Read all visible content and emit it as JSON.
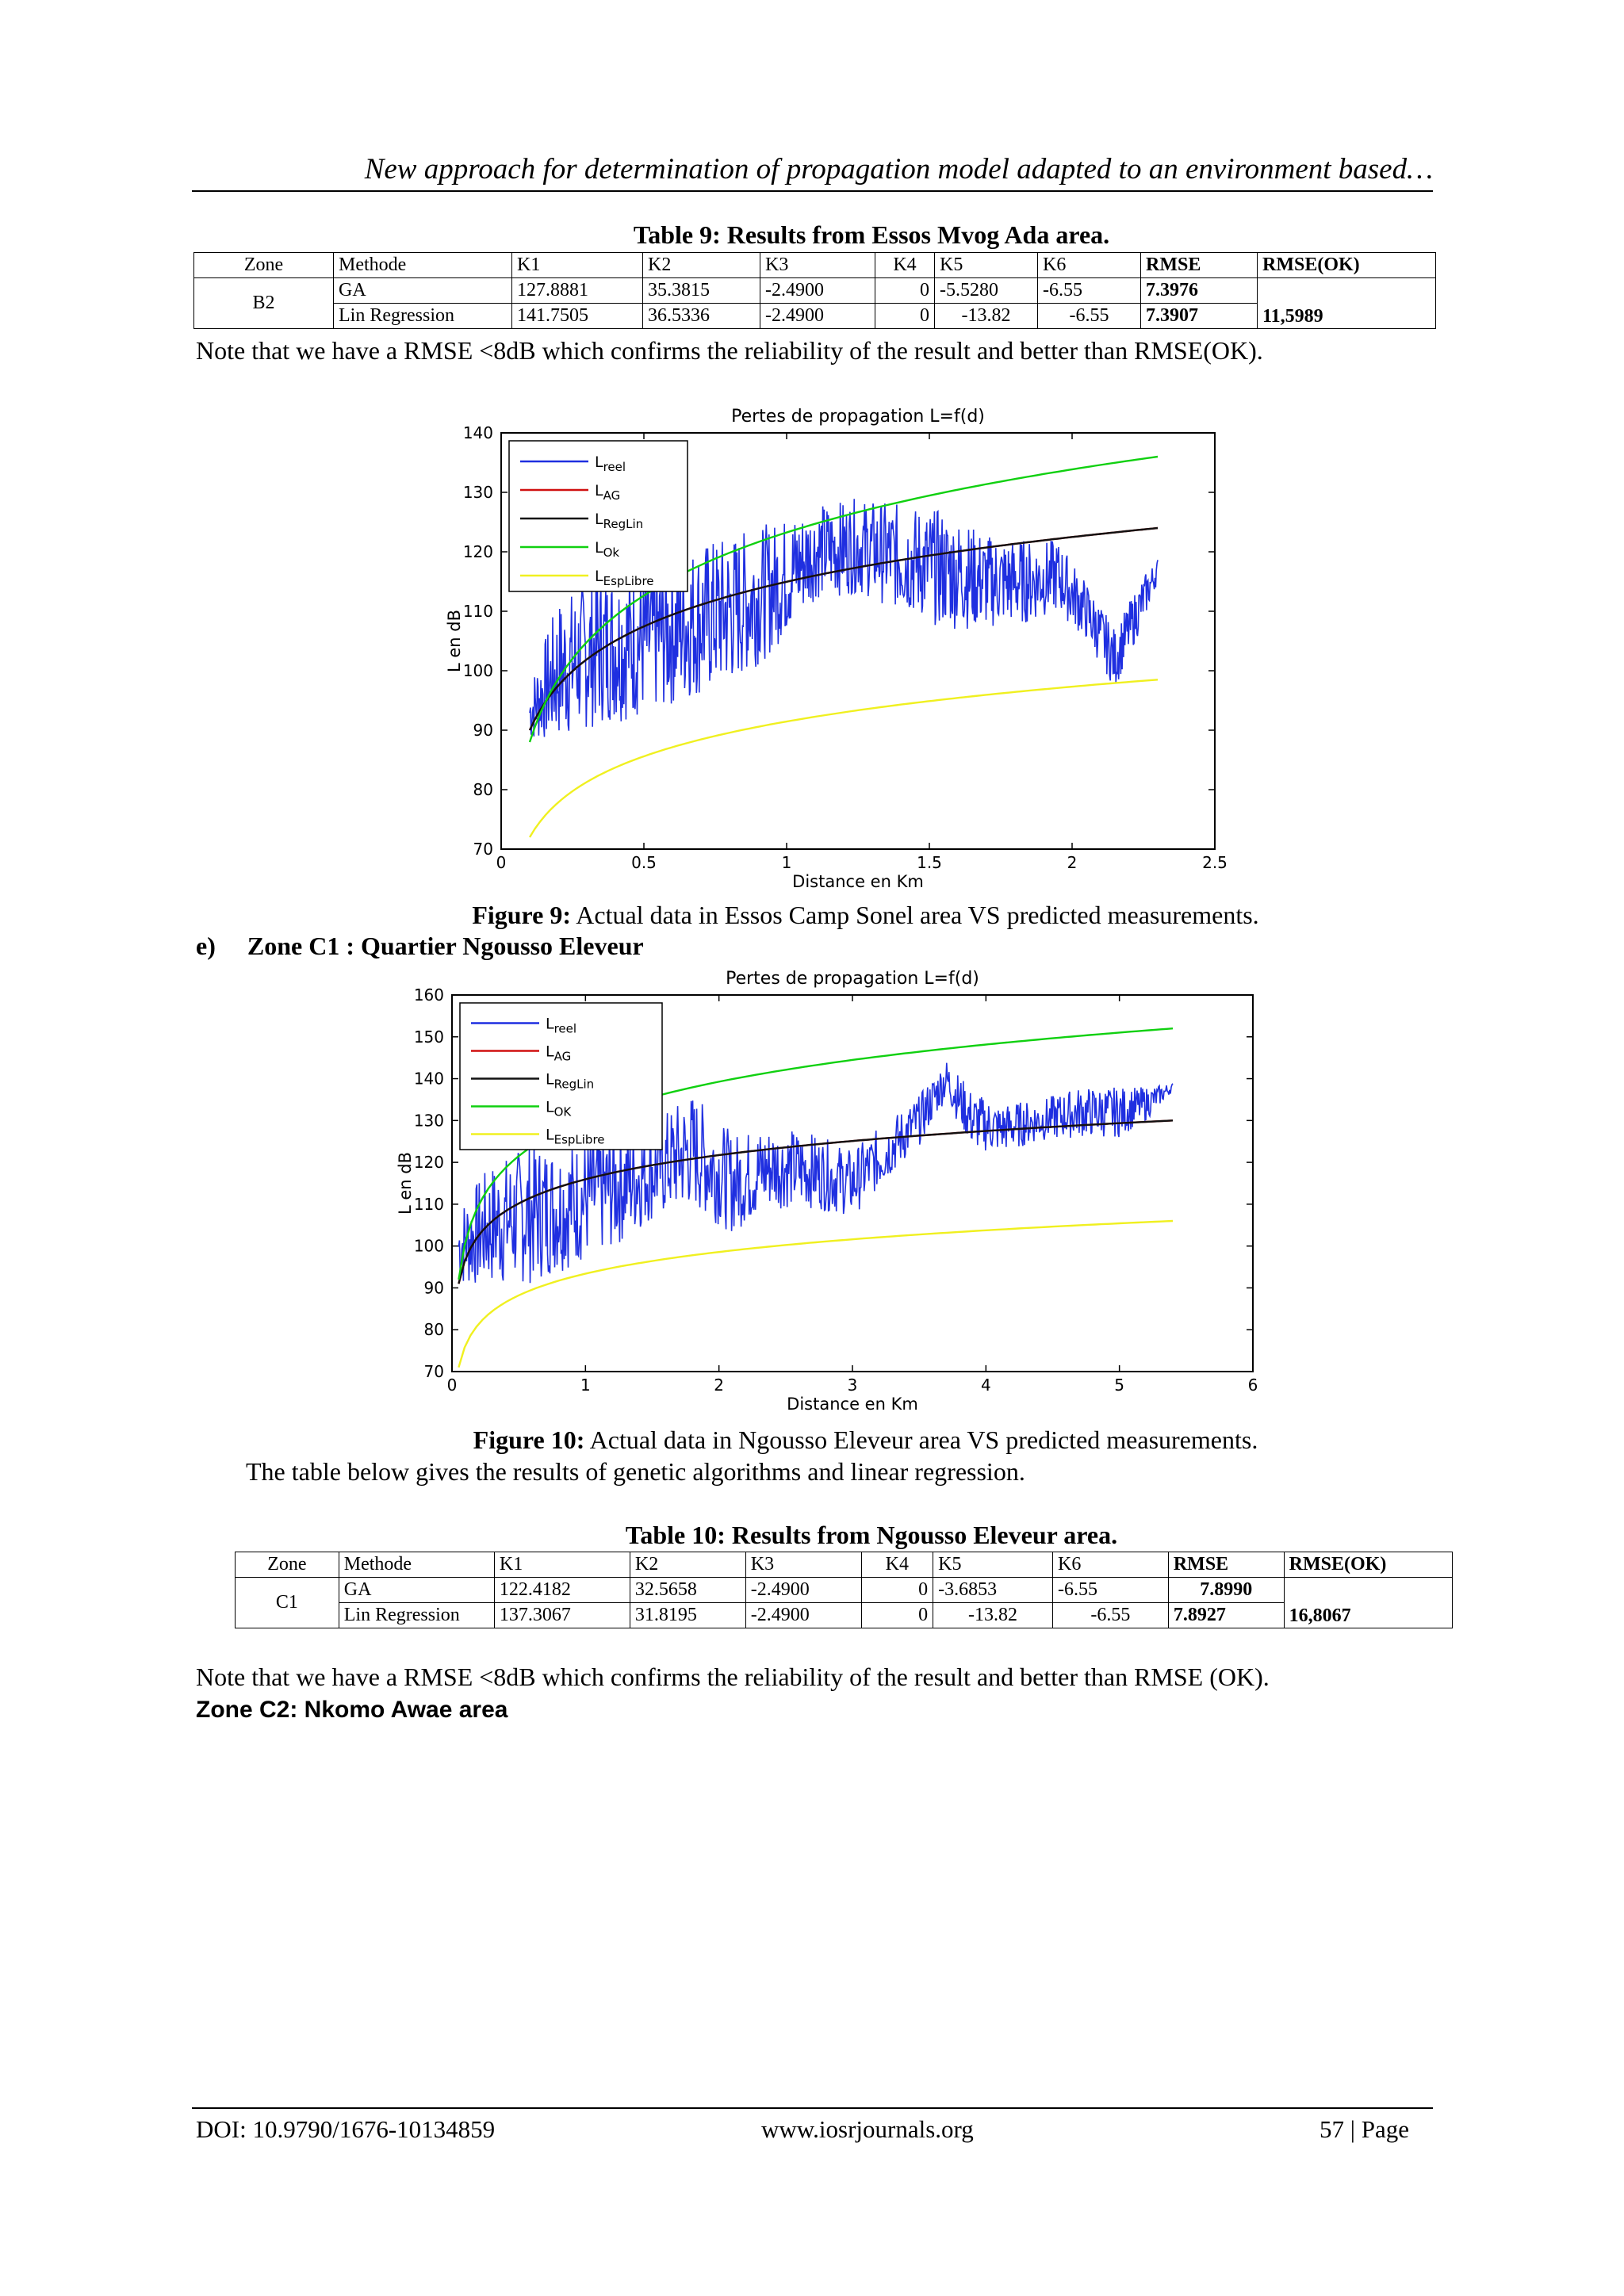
{
  "header": {
    "running_title": "New approach for determination of propagation model adapted to an environment based…"
  },
  "table9": {
    "caption": "Table 9: Results from Essos Mvog Ada  area.",
    "headers": [
      "Zone",
      "Methode",
      "K1",
      "K2",
      "K3",
      "K4",
      "K5",
      "K6",
      "RMSE",
      "RMSE(OK)"
    ],
    "zone": "B2",
    "rows": [
      {
        "method": "GA",
        "k1": "127.8881",
        "k2": "35.3815",
        "k3": "-2.4900",
        "k4": "0",
        "k5": "-5.5280",
        "k6": "-6.55",
        "rmse": "7.3976",
        "rmse_ok": ""
      },
      {
        "method": "Lin Regression",
        "k1": "141.7505",
        "k2": "36.5336",
        "k3": "-2.4900",
        "k4": "0",
        "k5": "-13.82",
        "k6": "-6.55",
        "rmse": "7.3907",
        "rmse_ok": "11,5989"
      }
    ]
  },
  "note1": "Note that we have a RMSE <8dB which confirms the reliability of the result and better than RMSE(OK).",
  "figure9": {
    "label": "Figure 9:",
    "text": " Actual data in  Essos Camp Sonel area  VS predicted measurements."
  },
  "section_e": {
    "marker": "e)",
    "title": "Zone C1 : Quartier Ngousso Eleveur"
  },
  "figure10": {
    "label": "Figure 10:",
    "text": " Actual data in  Ngousso Eleveur area  VS predicted measurements."
  },
  "intro_table10": "The table below gives the results of genetic algorithms and linear regression.",
  "table10": {
    "caption": "Table 10: Results from Ngousso Eleveur  area.",
    "headers": [
      "Zone",
      "Methode",
      "K1",
      "K2",
      "K3",
      "K4",
      "K5",
      "K6",
      "RMSE",
      "RMSE(OK)"
    ],
    "zone": "C1",
    "rows": [
      {
        "method": "GA",
        "k1": "122.4182",
        "k2": "32.5658",
        "k3": "-2.4900",
        "k4": "0",
        "k5": "-3.6853",
        "k6": "-6.55",
        "rmse": "7.8990",
        "rmse_ok": ""
      },
      {
        "method": "Lin Regression",
        "k1": "137.3067",
        "k2": "31.8195",
        "k3": "-2.4900",
        "k4": "0",
        "k5": "-13.82",
        "k6": "-6.55",
        "rmse": "7.8927",
        "rmse_ok": "16,8067"
      }
    ]
  },
  "note2": "Note that we have a RMSE <8dB which confirms the reliability of the result and better than RMSE (OK).",
  "zone_c2_heading": "Zone C2: Nkomo Awae area",
  "footer": {
    "doi": "DOI: 10.9790/1676-10134859",
    "site": "www.iosrjournals.org",
    "page": "57 | Page"
  },
  "chart_data": [
    {
      "type": "line",
      "title": "Pertes de propagation L=f(d)",
      "xlabel": "Distance en Km",
      "ylabel": "L en dB",
      "xlim": [
        0,
        2.5
      ],
      "ylim": [
        70,
        140
      ],
      "xticks": [
        "0",
        "0.5",
        "1",
        "1.5",
        "2",
        "2.5"
      ],
      "yticks": [
        "70",
        "80",
        "90",
        "100",
        "110",
        "120",
        "130",
        "140"
      ],
      "legend_position": "top-left",
      "series": [
        {
          "name": "Lreel",
          "legend_base": "L",
          "legend_sub": "reel",
          "color": "#1f2fe0",
          "kind": "measured",
          "x": [
            0.1,
            0.2,
            0.35,
            0.5,
            0.65,
            0.8,
            0.95,
            1.1,
            1.25,
            1.4,
            1.55,
            1.7,
            1.85,
            1.95,
            2.05,
            2.15,
            2.25,
            2.3
          ],
          "y": [
            93,
            100,
            104,
            105,
            108,
            110,
            114,
            120,
            121,
            119,
            117,
            115,
            115,
            116,
            110,
            102,
            112,
            117
          ],
          "spread": [
            5,
            12,
            13,
            13,
            13,
            13,
            11,
            8,
            8,
            9,
            10,
            8,
            7,
            6,
            5,
            5,
            4,
            2
          ]
        },
        {
          "name": "LAG",
          "legend_base": "L",
          "legend_sub": "AG",
          "color": "#d01010",
          "kind": "model",
          "x": [
            0.1,
            2.3
          ],
          "y": [
            90,
            124
          ]
        },
        {
          "name": "LRegLin",
          "legend_base": "L",
          "legend_sub": "RegLin",
          "color": "#111111",
          "kind": "model",
          "x": [
            0.1,
            2.3
          ],
          "y": [
            90,
            124
          ]
        },
        {
          "name": "LOk",
          "legend_base": "L",
          "legend_sub": "Ok",
          "color": "#10d010",
          "kind": "model",
          "x": [
            0.1,
            2.3
          ],
          "y": [
            88,
            136
          ]
        },
        {
          "name": "LEspLibre",
          "legend_base": "L",
          "legend_sub": "EspLibre",
          "color": "#f0f020",
          "kind": "model",
          "x": [
            0.1,
            2.3
          ],
          "y": [
            72,
            98.5
          ]
        }
      ]
    },
    {
      "type": "line",
      "title": "Pertes de propagation L=f(d)",
      "xlabel": "Distance en Km",
      "ylabel": "L en dB",
      "xlim": [
        0,
        6
      ],
      "ylim": [
        70,
        160
      ],
      "xticks": [
        "0",
        "1",
        "2",
        "3",
        "4",
        "5",
        "6"
      ],
      "yticks": [
        "70",
        "80",
        "90",
        "100",
        "110",
        "120",
        "130",
        "140",
        "150",
        "160"
      ],
      "legend_position": "top-left",
      "series": [
        {
          "name": "Lreel",
          "legend_base": "L",
          "legend_sub": "reel",
          "color": "#1f2fe0",
          "kind": "measured",
          "x": [
            0.05,
            0.3,
            0.6,
            0.9,
            1.2,
            1.5,
            1.8,
            2.1,
            2.4,
            2.7,
            3.0,
            3.3,
            3.5,
            3.7,
            3.9,
            4.1,
            4.4,
            4.7,
            5.0,
            5.2,
            5.4
          ],
          "y": [
            100,
            105,
            108,
            110,
            114,
            118,
            123,
            115,
            119,
            118,
            115,
            124,
            130,
            140,
            130,
            128,
            130,
            132,
            132,
            134,
            138
          ],
          "spread": [
            10,
            15,
            17,
            15,
            15,
            12,
            14,
            12,
            10,
            9,
            8,
            7,
            6,
            5,
            7,
            6,
            5,
            6,
            6,
            4,
            1
          ]
        },
        {
          "name": "LAG",
          "legend_base": "L",
          "legend_sub": "AG",
          "color": "#d01010",
          "kind": "model",
          "x": [
            0.05,
            5.4
          ],
          "y": [
            91,
            130
          ]
        },
        {
          "name": "LRegLin",
          "legend_base": "L",
          "legend_sub": "RegLin",
          "color": "#111111",
          "kind": "model",
          "x": [
            0.05,
            5.4
          ],
          "y": [
            91,
            130
          ]
        },
        {
          "name": "LOK",
          "legend_base": "L",
          "legend_sub": "OK",
          "color": "#10d010",
          "kind": "model",
          "x": [
            0.05,
            5.4
          ],
          "y": [
            92,
            152
          ]
        },
        {
          "name": "LEspLibre",
          "legend_base": "L",
          "legend_sub": "EspLibre",
          "color": "#f0f020",
          "kind": "model",
          "x": [
            0.05,
            5.4
          ],
          "y": [
            71,
            106
          ]
        }
      ]
    }
  ]
}
